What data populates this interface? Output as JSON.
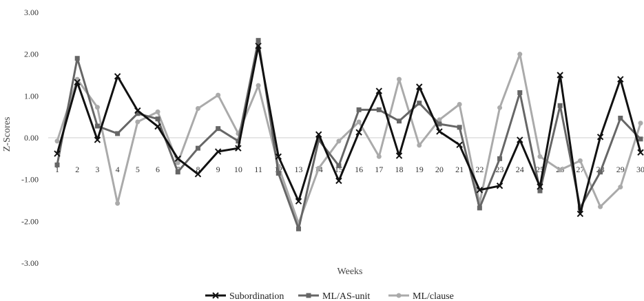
{
  "chart_data": {
    "type": "line",
    "title": "",
    "xlabel": "Weeks",
    "ylabel": "Z-Scores",
    "ylim": [
      -3,
      3
    ],
    "yticks": [
      3,
      2,
      1,
      0,
      -1,
      -2,
      -3
    ],
    "ytick_labels": [
      "3.00",
      "2.00",
      "1.00",
      "0.00",
      "-1.00",
      "-2.00",
      "-3.00"
    ],
    "x": [
      1,
      2,
      3,
      4,
      5,
      6,
      7,
      8,
      9,
      10,
      11,
      12,
      13,
      14,
      15,
      16,
      17,
      18,
      19,
      20,
      21,
      22,
      23,
      24,
      25,
      26,
      27,
      28,
      29,
      30
    ],
    "xtick_labels": [
      "1",
      "2",
      "3",
      "4",
      "5",
      "6",
      "7",
      "8",
      "9",
      "10",
      "11",
      "12",
      "13",
      "14",
      "15",
      "16",
      "17",
      "18",
      "19",
      "20",
      "21",
      "22",
      "23",
      "24",
      "25",
      "26",
      "27",
      "28",
      "29",
      "30"
    ],
    "grid": false,
    "zero_line": true,
    "legend_position": "bottom",
    "series": [
      {
        "name": "Subordination",
        "color": "#111111",
        "marker": "x",
        "values": [
          -0.38,
          1.33,
          -0.05,
          1.47,
          0.65,
          0.27,
          -0.5,
          -0.87,
          -0.33,
          -0.25,
          2.2,
          -0.45,
          -1.52,
          0.08,
          -1.03,
          0.13,
          1.12,
          -0.43,
          1.22,
          0.15,
          -0.17,
          -1.25,
          -1.15,
          -0.05,
          -1.17,
          1.5,
          -1.82,
          0.02,
          1.4,
          -0.35
        ]
      },
      {
        "name": "ML/AS-unit",
        "color": "#666666",
        "marker": "square",
        "values": [
          -0.65,
          1.9,
          0.28,
          0.1,
          0.58,
          0.45,
          -0.82,
          -0.25,
          0.22,
          -0.08,
          2.33,
          -0.85,
          -2.18,
          -0.05,
          -0.67,
          0.67,
          0.67,
          0.4,
          0.83,
          0.33,
          0.25,
          -1.68,
          -0.5,
          1.08,
          -1.27,
          0.77,
          -1.68,
          -0.82,
          0.47,
          -0.03
        ]
      },
      {
        "name": "ML/clause",
        "color": "#aaaaaa",
        "marker": "circle",
        "values": [
          -0.08,
          1.4,
          0.73,
          -1.57,
          0.38,
          0.62,
          -0.6,
          0.7,
          1.02,
          0.1,
          1.25,
          -0.68,
          -2.05,
          -0.73,
          -0.08,
          0.38,
          -0.45,
          1.4,
          -0.18,
          0.43,
          0.8,
          -1.57,
          0.72,
          2.0,
          -0.45,
          -0.77,
          -0.55,
          -1.65,
          -1.18,
          0.35
        ]
      }
    ]
  }
}
